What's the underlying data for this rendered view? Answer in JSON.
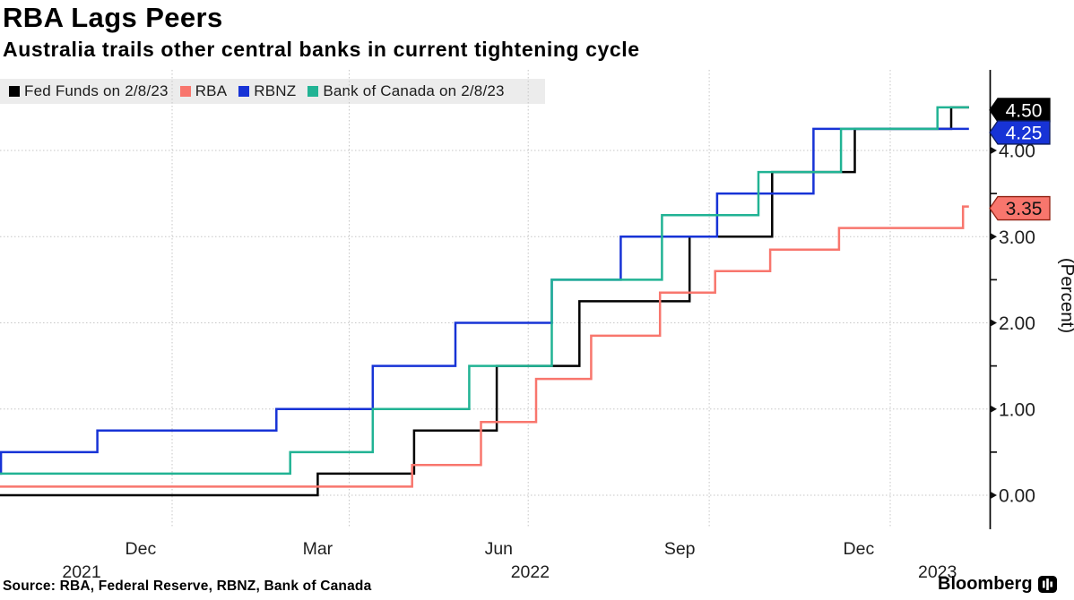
{
  "header": {
    "title": "RBA Lags Peers",
    "subtitle": "Australia trails other central banks in current tightening cycle"
  },
  "legend": {
    "items": [
      {
        "label": "Fed Funds on 2/8/23",
        "color": "#000000"
      },
      {
        "label": "RBA",
        "color": "#f8766d"
      },
      {
        "label": "RBNZ",
        "color": "#1733d6"
      },
      {
        "label": "Bank of Canada on 2/8/23",
        "color": "#21b394"
      }
    ]
  },
  "footer": {
    "source": "Source: RBA, Federal Reserve, RBNZ, Bank of Canada",
    "brand": "Bloomberg"
  },
  "chart_data": {
    "type": "line",
    "subtype": "step-after",
    "title": "RBA Lags Peers",
    "subtitle": "Australia trails other central banks in current tightening cycle",
    "ylabel": "(Percent)",
    "grid": "dotted",
    "legend_position": "top-left",
    "y_axis": {
      "labeled_ticks": [
        0.0,
        1.0,
        2.0,
        3.0,
        4.0
      ],
      "minor_ticks": [
        0.5,
        1.5,
        2.5,
        3.5
      ],
      "tick_decimals": 2,
      "side": "right",
      "ylim": [
        -0.38,
        4.75
      ]
    },
    "x_axis": {
      "domain": [
        "2021-10-01",
        "2023-02-10"
      ],
      "gridline_dates": [
        "2022-01-01",
        "2022-04-01",
        "2022-07-01",
        "2022-10-01",
        "2023-01-01"
      ],
      "month_labels": [
        {
          "text": "Dec",
          "date": "2021-12-16"
        },
        {
          "text": "Mar",
          "date": "2022-03-16"
        },
        {
          "text": "Jun",
          "date": "2022-06-16"
        },
        {
          "text": "Sep",
          "date": "2022-09-16"
        },
        {
          "text": "Dec",
          "date": "2022-12-16"
        }
      ],
      "year_labels": [
        {
          "text": "2021",
          "date": "2021-11-16"
        },
        {
          "text": "2022",
          "date": "2022-07-02"
        },
        {
          "text": "2023",
          "date": "2023-01-25"
        }
      ]
    },
    "series": [
      {
        "name": "Fed Funds on 2/8/23",
        "color": "#000000",
        "points": [
          [
            "2021-10-01",
            0.0
          ],
          [
            "2022-03-16",
            0.25
          ],
          [
            "2022-05-04",
            0.75
          ],
          [
            "2022-06-15",
            1.5
          ],
          [
            "2022-07-27",
            2.25
          ],
          [
            "2022-09-21",
            3.0
          ],
          [
            "2022-11-02",
            3.75
          ],
          [
            "2022-12-14",
            4.25
          ],
          [
            "2023-02-01",
            4.5
          ]
        ]
      },
      {
        "name": "RBA",
        "color": "#f8766d",
        "points": [
          [
            "2021-10-01",
            0.1
          ],
          [
            "2022-05-03",
            0.35
          ],
          [
            "2022-06-07",
            0.85
          ],
          [
            "2022-07-05",
            1.35
          ],
          [
            "2022-08-02",
            1.85
          ],
          [
            "2022-09-06",
            2.35
          ],
          [
            "2022-10-04",
            2.6
          ],
          [
            "2022-11-01",
            2.85
          ],
          [
            "2022-12-06",
            3.1
          ],
          [
            "2023-02-07",
            3.35
          ]
        ]
      },
      {
        "name": "RBNZ",
        "color": "#1733d6",
        "points": [
          [
            "2021-10-01",
            0.25
          ],
          [
            "2021-10-06",
            0.5
          ],
          [
            "2021-11-24",
            0.75
          ],
          [
            "2022-02-23",
            1.0
          ],
          [
            "2022-04-13",
            1.5
          ],
          [
            "2022-05-25",
            2.0
          ],
          [
            "2022-07-13",
            2.5
          ],
          [
            "2022-08-17",
            3.0
          ],
          [
            "2022-10-05",
            3.5
          ],
          [
            "2022-11-23",
            4.25
          ]
        ]
      },
      {
        "name": "Bank of Canada on 2/8/23",
        "color": "#21b394",
        "points": [
          [
            "2021-10-01",
            0.25
          ],
          [
            "2022-03-02",
            0.5
          ],
          [
            "2022-04-13",
            1.0
          ],
          [
            "2022-06-01",
            1.5
          ],
          [
            "2022-07-13",
            2.5
          ],
          [
            "2022-09-07",
            3.25
          ],
          [
            "2022-10-26",
            3.75
          ],
          [
            "2022-12-07",
            4.25
          ],
          [
            "2023-01-25",
            4.5
          ]
        ]
      }
    ],
    "end_badges": [
      {
        "label": "4.50",
        "value": 4.5,
        "dy": 3,
        "fill": "#000000",
        "text_color": "#ffffff",
        "stroke": "#000000"
      },
      {
        "label": "4.25",
        "value": 4.25,
        "dy": 4,
        "fill": "#1733d6",
        "text_color": "#ffffff",
        "stroke": "#0d1b59"
      },
      {
        "label": "3.35",
        "value": 3.35,
        "dy": 2,
        "fill": "#f8766d",
        "text_color": "#111111",
        "stroke": "#8f2011"
      }
    ]
  }
}
